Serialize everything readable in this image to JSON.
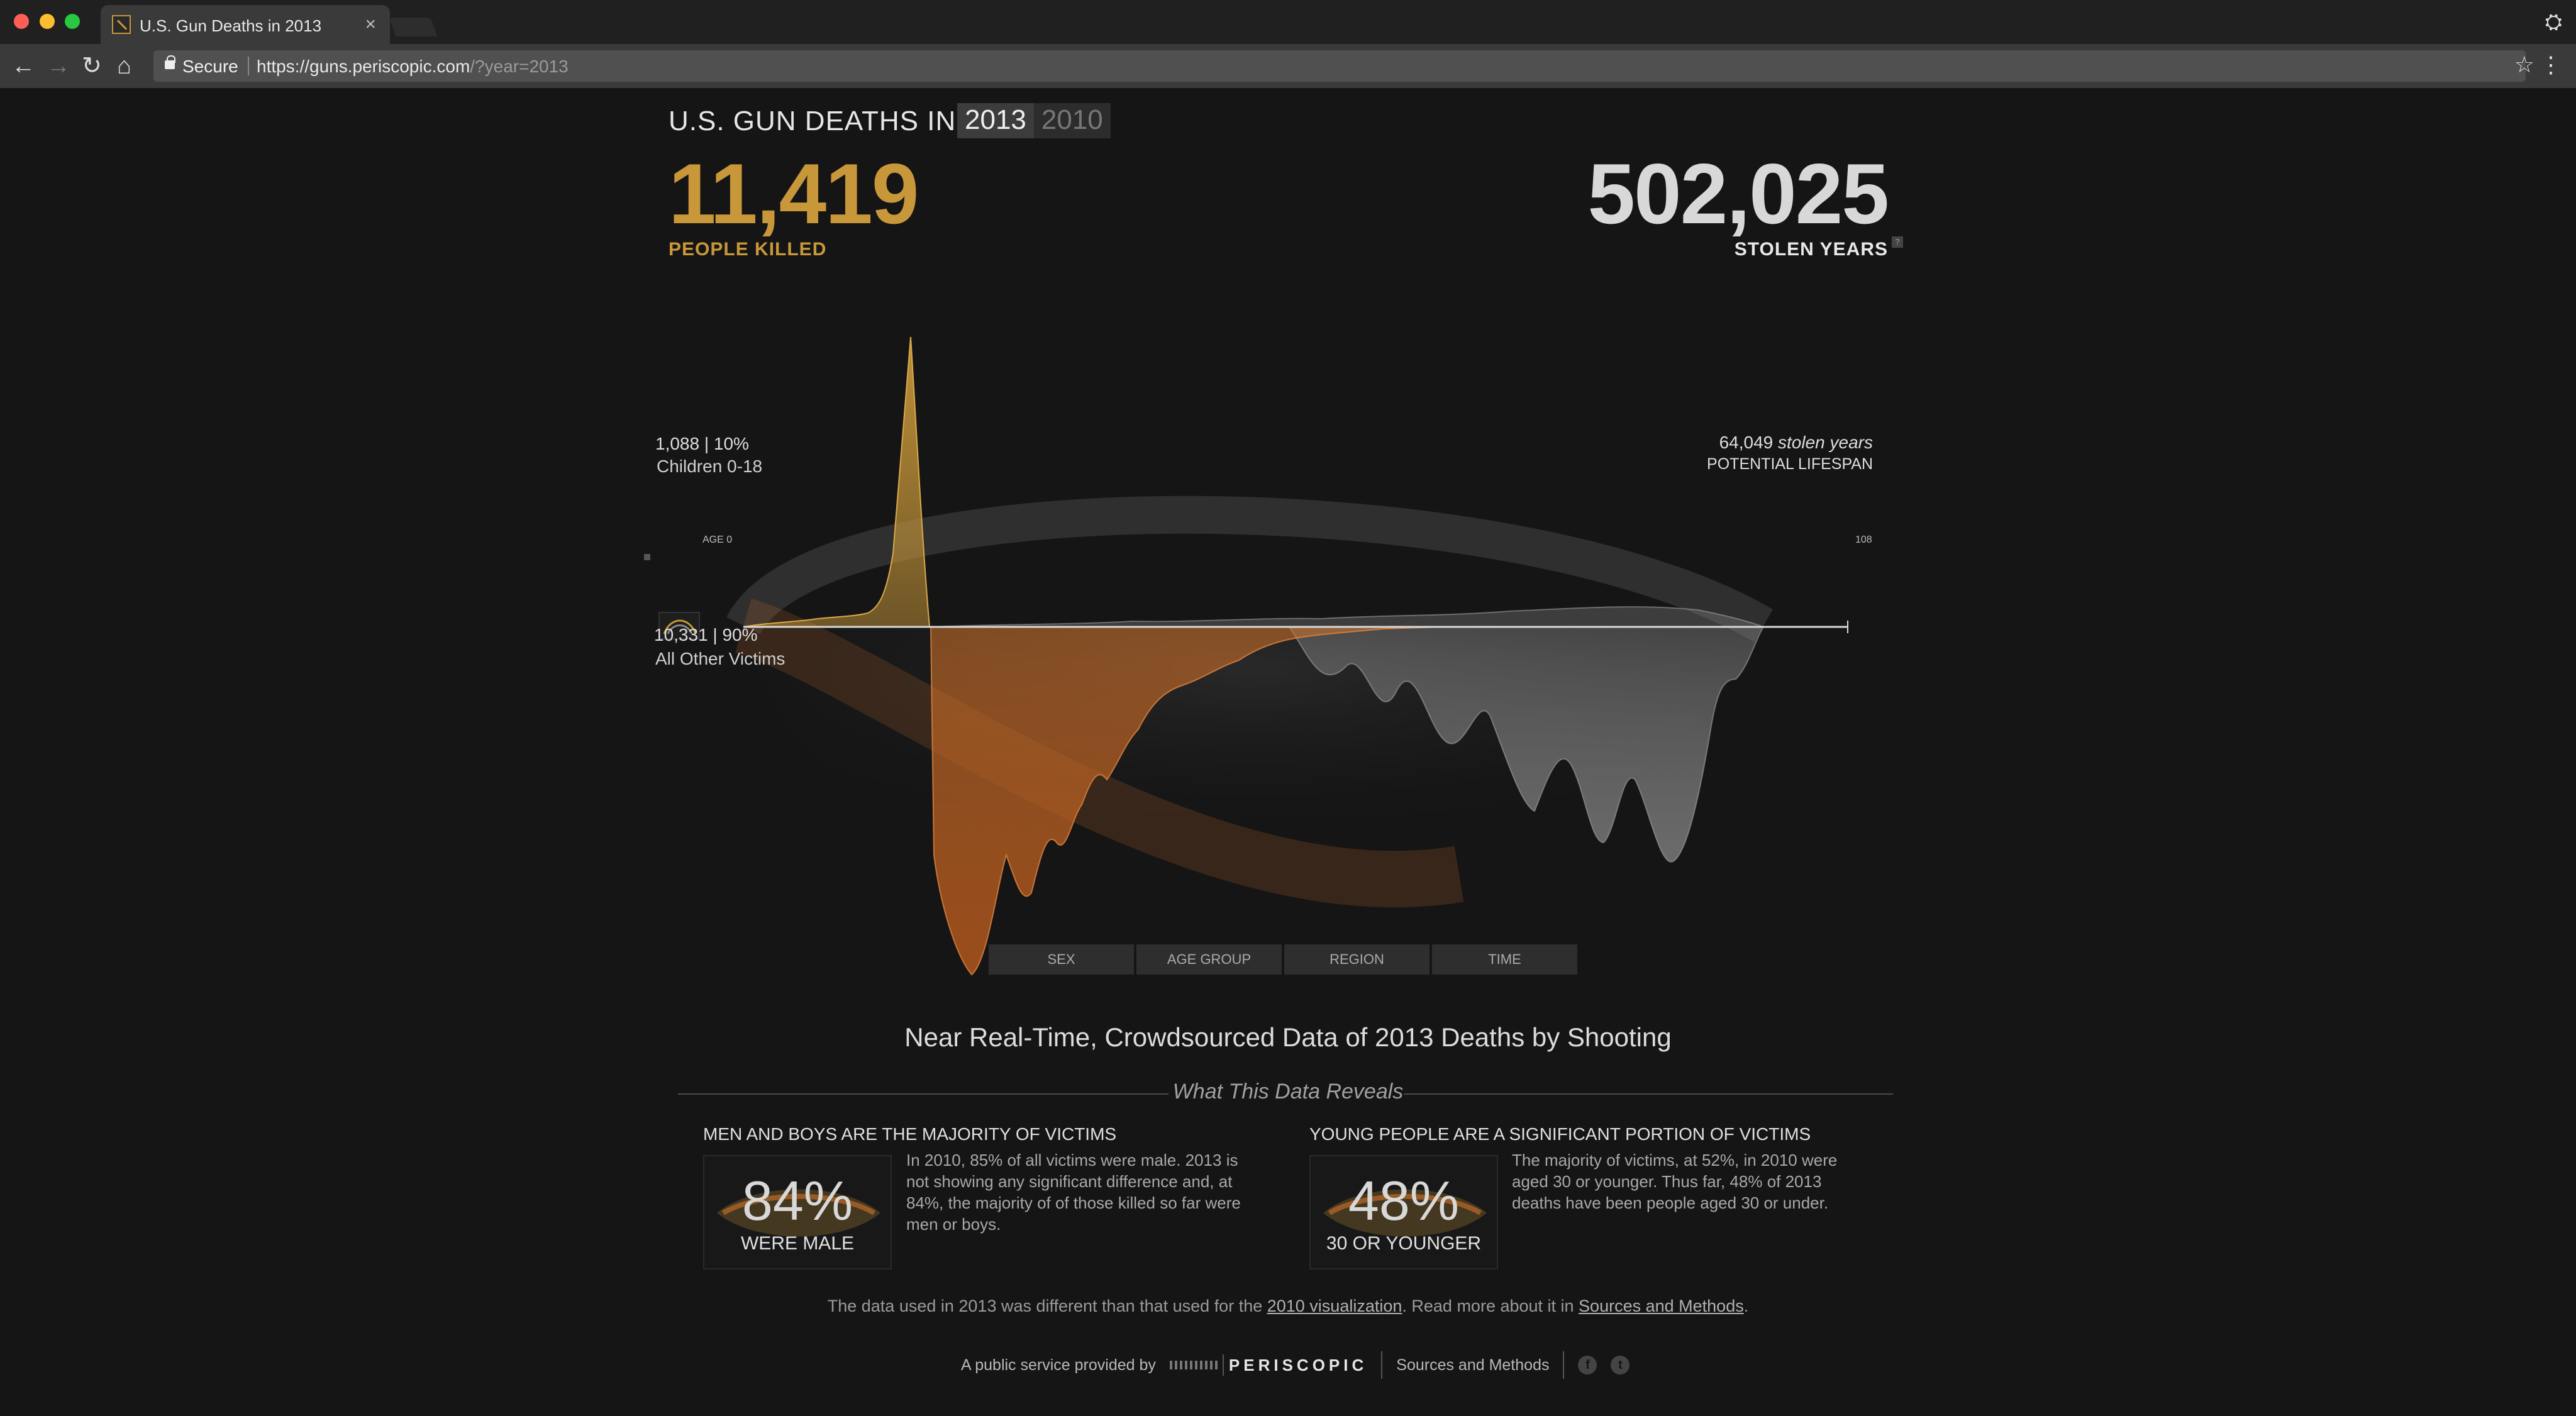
{
  "browser": {
    "tab_title": "U.S. Gun Deaths in 2013",
    "secure_label": "Secure",
    "url_host": "https://guns.periscopic.com",
    "url_path": "/?year=2013"
  },
  "header": {
    "title": "U.S. GUN DEATHS IN",
    "years": [
      "2013",
      "2010"
    ],
    "selected_year": "2013"
  },
  "stats": {
    "killed_value": "11,419",
    "killed_label": "PEOPLE KILLED",
    "stolen_value": "502,025",
    "stolen_label": "STOLEN YEARS",
    "stolen_help": "?"
  },
  "chart_data": {
    "type": "area",
    "title": "",
    "upper_group": {
      "label": "Children 0-18",
      "count": "1,088 | 10%"
    },
    "lower_group": {
      "label": "All Other Victims",
      "count": "10,331 | 90%"
    },
    "right_annotation": {
      "value": "64,049",
      "value_suffix": "stolen years",
      "label": "POTENTIAL LIFESPAN"
    },
    "axis": {
      "start_label": "AGE 0",
      "end_label": "108"
    },
    "colors": {
      "children": "#c8973a",
      "adults_actual": "#d2732a",
      "potential": "#8a8a8a"
    }
  },
  "filters": [
    "SEX",
    "AGE GROUP",
    "REGION",
    "TIME"
  ],
  "reveal": {
    "subtitle": "Near Real-Time, Crowdsourced Data of 2013 Deaths by Shooting",
    "section_title": "What This Data Reveals",
    "cards": [
      {
        "title": "MEN AND BOYS ARE THE MAJORITY OF VICTIMS",
        "pct": "84%",
        "pct_label": "WERE MALE",
        "text": "In 2010, 85% of all victims were male. 2013 is not showing any significant difference and, at 84%, the majority of of those killed so far were men or boys."
      },
      {
        "title": "YOUNG PEOPLE ARE A SIGNIFICANT PORTION OF VICTIMS",
        "pct": "48%",
        "pct_label": "30 OR YOUNGER",
        "text": "The majority of victims, at 52%, in 2010 were aged 30 or younger. Thus far, 48% of 2013 deaths have been people aged 30 or under."
      }
    ]
  },
  "note": {
    "before": "The data used in 2013 was different than that used for the ",
    "link1": "2010 visualization",
    "middle": ". Read more about it in ",
    "link2": "Sources and Methods",
    "after": "."
  },
  "footer": {
    "provided_by": "A public service provided by",
    "brand": "PERISCOPIC",
    "sources": "Sources and Methods",
    "facebook": "f",
    "twitter": "t"
  }
}
